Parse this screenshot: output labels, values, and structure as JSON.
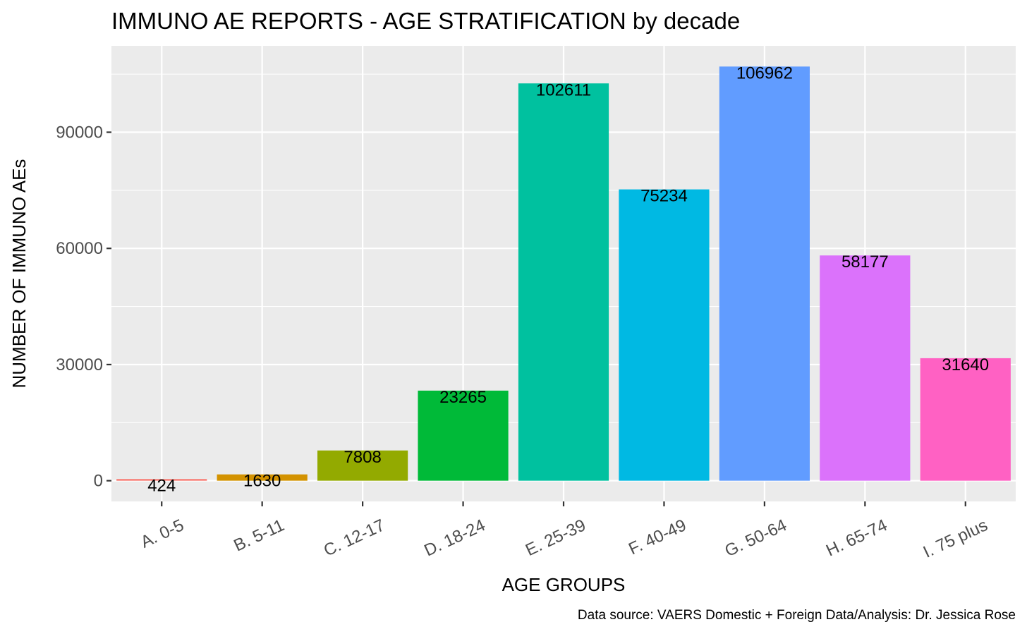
{
  "chart_data": {
    "type": "bar",
    "title": "IMMUNO AE REPORTS - AGE STRATIFICATION by decade",
    "xlabel": "AGE GROUPS",
    "ylabel": "NUMBER OF IMMUNO AEs",
    "caption": "Data source: VAERS Domestic + Foreign Data/Analysis: Dr. Jessica Rose",
    "categories": [
      "A. 0-5",
      "B. 5-11",
      "C. 12-17",
      "D. 18-24",
      "E. 25-39",
      "F. 40-49",
      "G. 50-64",
      "H. 65-74",
      "I. 75 plus"
    ],
    "values": [
      424,
      1630,
      7808,
      23265,
      102611,
      75234,
      106962,
      58177,
      31640
    ],
    "data_labels": [
      "424",
      "1630",
      "7808",
      "23265",
      "102611",
      "75234",
      "106962",
      "58177",
      "31640"
    ],
    "colors": [
      "#F8766D",
      "#D39200",
      "#93AA00",
      "#00BA38",
      "#00C19F",
      "#00B9E3",
      "#619CFF",
      "#DB72FB",
      "#FF61C3"
    ],
    "yticks": [
      0,
      30000,
      60000,
      90000
    ],
    "ytick_labels": [
      "0",
      "30000",
      "60000",
      "90000"
    ],
    "ylim": [
      -5348,
      112310
    ],
    "grid": true,
    "legend": "none"
  }
}
